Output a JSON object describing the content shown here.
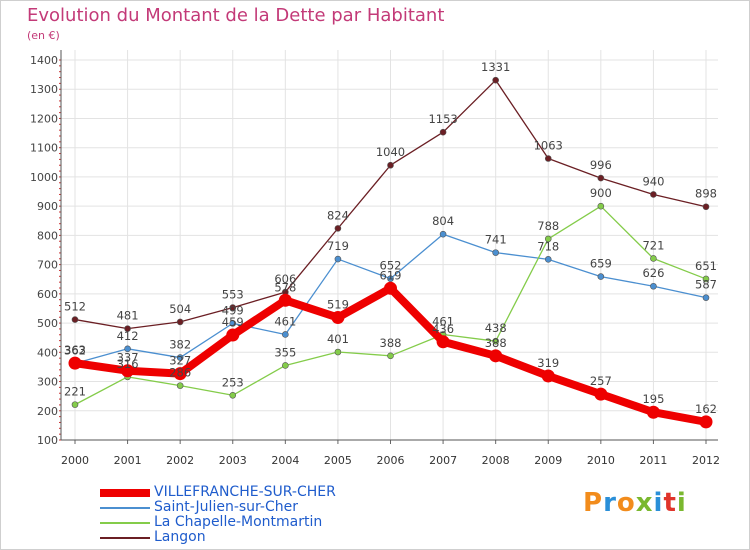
{
  "header": {
    "title": "Evolution du Montant de la Dette par Habitant",
    "unit": "(en €)"
  },
  "logo": {
    "text": "Proxiti",
    "colors": [
      "#f28c1c",
      "#2a8fd8",
      "#f28c1c",
      "#7ab82f",
      "#2a8fd8",
      "#e0342b",
      "#7ab82f"
    ]
  },
  "chart_data": {
    "type": "line",
    "title": "Evolution du Montant de la Dette par Habitant",
    "subtitle": "(en €)",
    "xlabel": "",
    "ylabel": "",
    "x": [
      "2000",
      "2001",
      "2002",
      "2003",
      "2004",
      "2005",
      "2006",
      "2007",
      "2008",
      "2009",
      "2010",
      "2011",
      "2012"
    ],
    "ylim": [
      100,
      1400
    ],
    "yticks": [
      100,
      200,
      300,
      400,
      500,
      600,
      700,
      800,
      900,
      1000,
      1100,
      1200,
      1300,
      1400
    ],
    "grid": true,
    "legend_position": "bottom-left",
    "series": [
      {
        "name": "Langon",
        "color": "#6b1f24",
        "values": [
          512,
          481,
          504,
          553,
          606,
          824,
          1040,
          1153,
          1331,
          1063,
          996,
          940,
          898
        ]
      },
      {
        "name": "Saint-Julien-sur-Cher",
        "color": "#4b8fd0",
        "values": [
          362,
          412,
          382,
          499,
          461,
          719,
          652,
          804,
          741,
          718,
          659,
          626,
          587
        ]
      },
      {
        "name": "La Chapelle-Montmartin",
        "color": "#84cc4a",
        "values": [
          221,
          316,
          286,
          253,
          355,
          401,
          388,
          461,
          438,
          788,
          900,
          721,
          651
        ]
      },
      {
        "name": "VILLEFRANCHE-SUR-CHER",
        "color": "#ee0000",
        "values": [
          363,
          337,
          327,
          459,
          578,
          519,
          619,
          436,
          388,
          319,
          257,
          195,
          162
        ]
      }
    ],
    "legend_order": [
      "VILLEFRANCHE-SUR-CHER",
      "Saint-Julien-sur-Cher",
      "La Chapelle-Montmartin",
      "Langon"
    ]
  }
}
